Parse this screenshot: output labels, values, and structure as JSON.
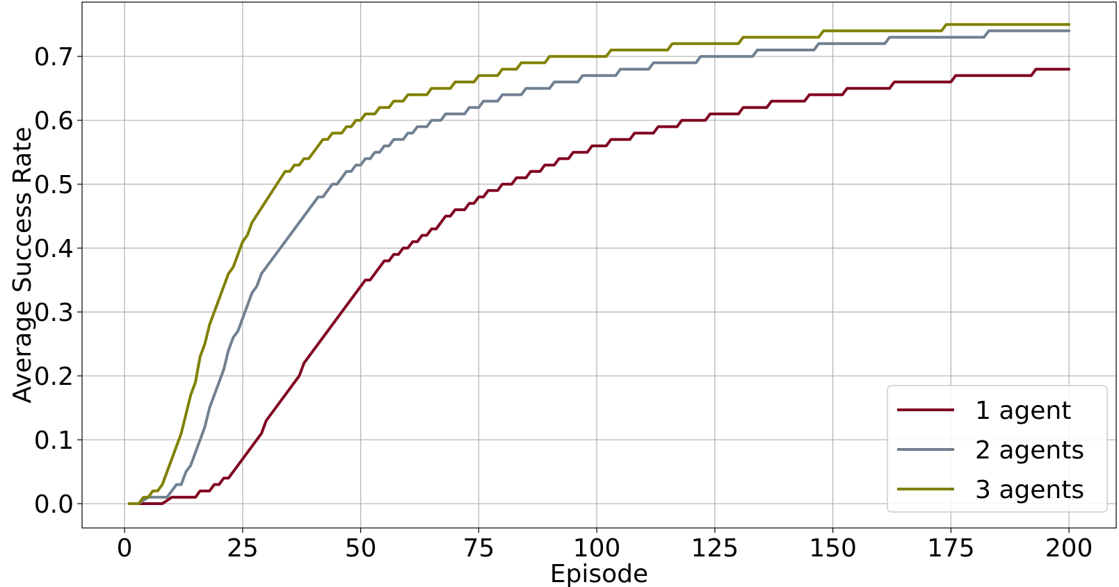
{
  "chart_data": {
    "type": "line",
    "title": "",
    "xlabel": "Episode",
    "ylabel": "Average Success Rate",
    "xlim": [
      -9,
      210
    ],
    "ylim": [
      -0.038,
      0.785
    ],
    "grid": true,
    "legend_position": "bottom-right",
    "x_ticks": [
      0,
      25,
      50,
      75,
      100,
      125,
      150,
      175,
      200
    ],
    "x_tick_labels": [
      "0",
      "25",
      "50",
      "75",
      "100",
      "125",
      "150",
      "175",
      "200"
    ],
    "y_ticks": [
      0.0,
      0.1,
      0.2,
      0.3,
      0.4,
      0.5,
      0.6,
      0.7
    ],
    "y_tick_labels": [
      "0.0",
      "0.1",
      "0.2",
      "0.3",
      "0.4",
      "0.5",
      "0.6",
      "0.7"
    ],
    "series": [
      {
        "name": "1 agent",
        "color": "#800020",
        "points": [
          [
            1,
            0
          ],
          [
            8,
            0
          ],
          [
            10,
            0.01
          ],
          [
            15,
            0.01
          ],
          [
            16,
            0.02
          ],
          [
            18,
            0.02
          ],
          [
            19,
            0.03
          ],
          [
            20,
            0.03
          ],
          [
            21,
            0.04
          ],
          [
            22,
            0.04
          ],
          [
            25,
            0.07
          ],
          [
            29,
            0.11
          ],
          [
            30,
            0.13
          ],
          [
            37,
            0.2
          ],
          [
            38,
            0.22
          ],
          [
            50,
            0.34
          ],
          [
            51,
            0.35
          ],
          [
            52,
            0.35
          ],
          [
            55,
            0.38
          ],
          [
            56,
            0.38
          ],
          [
            57,
            0.39
          ],
          [
            58,
            0.39
          ],
          [
            59,
            0.4
          ],
          [
            60,
            0.4
          ],
          [
            61,
            0.41
          ],
          [
            62,
            0.41
          ],
          [
            63,
            0.42
          ],
          [
            64,
            0.42
          ],
          [
            65,
            0.43
          ],
          [
            66,
            0.43
          ],
          [
            68,
            0.45
          ],
          [
            69,
            0.45
          ],
          [
            70,
            0.46
          ],
          [
            72,
            0.46
          ],
          [
            73,
            0.47
          ],
          [
            74,
            0.47
          ],
          [
            75,
            0.48
          ],
          [
            76,
            0.48
          ],
          [
            77,
            0.49
          ],
          [
            79,
            0.49
          ],
          [
            80,
            0.5
          ],
          [
            82,
            0.5
          ],
          [
            83,
            0.51
          ],
          [
            85,
            0.51
          ],
          [
            86,
            0.52
          ],
          [
            88,
            0.52
          ],
          [
            89,
            0.53
          ],
          [
            91,
            0.53
          ],
          [
            92,
            0.54
          ],
          [
            94,
            0.54
          ],
          [
            95,
            0.55
          ],
          [
            98,
            0.55
          ],
          [
            99,
            0.56
          ],
          [
            102,
            0.56
          ],
          [
            103,
            0.57
          ],
          [
            107,
            0.57
          ],
          [
            108,
            0.58
          ],
          [
            112,
            0.58
          ],
          [
            113,
            0.59
          ],
          [
            117,
            0.59
          ],
          [
            118,
            0.6
          ],
          [
            123,
            0.6
          ],
          [
            124,
            0.61
          ],
          [
            130,
            0.61
          ],
          [
            131,
            0.62
          ],
          [
            136,
            0.62
          ],
          [
            137,
            0.63
          ],
          [
            144,
            0.63
          ],
          [
            145,
            0.64
          ],
          [
            152,
            0.64
          ],
          [
            153,
            0.65
          ],
          [
            162,
            0.65
          ],
          [
            163,
            0.66
          ],
          [
            175,
            0.66
          ],
          [
            176,
            0.67
          ],
          [
            192,
            0.67
          ],
          [
            193,
            0.68
          ],
          [
            200,
            0.68
          ]
        ]
      },
      {
        "name": "2 agents",
        "color": "#708090",
        "points": [
          [
            1,
            0
          ],
          [
            3,
            0
          ],
          [
            5,
            0.01
          ],
          [
            9,
            0.01
          ],
          [
            11,
            0.03
          ],
          [
            12,
            0.03
          ],
          [
            13,
            0.05
          ],
          [
            14,
            0.06
          ],
          [
            17,
            0.12
          ],
          [
            18,
            0.15
          ],
          [
            21,
            0.21
          ],
          [
            22,
            0.24
          ],
          [
            23,
            0.26
          ],
          [
            24,
            0.27
          ],
          [
            27,
            0.33
          ],
          [
            28,
            0.34
          ],
          [
            29,
            0.36
          ],
          [
            41,
            0.48
          ],
          [
            42,
            0.48
          ],
          [
            44,
            0.5
          ],
          [
            45,
            0.5
          ],
          [
            47,
            0.52
          ],
          [
            48,
            0.52
          ],
          [
            49,
            0.53
          ],
          [
            50,
            0.53
          ],
          [
            51,
            0.54
          ],
          [
            52,
            0.54
          ],
          [
            53,
            0.55
          ],
          [
            54,
            0.55
          ],
          [
            55,
            0.56
          ],
          [
            56,
            0.56
          ],
          [
            57,
            0.57
          ],
          [
            59,
            0.57
          ],
          [
            60,
            0.58
          ],
          [
            61,
            0.58
          ],
          [
            62,
            0.59
          ],
          [
            64,
            0.59
          ],
          [
            65,
            0.6
          ],
          [
            67,
            0.6
          ],
          [
            68,
            0.61
          ],
          [
            72,
            0.61
          ],
          [
            73,
            0.62
          ],
          [
            75,
            0.62
          ],
          [
            76,
            0.63
          ],
          [
            79,
            0.63
          ],
          [
            80,
            0.64
          ],
          [
            84,
            0.64
          ],
          [
            85,
            0.65
          ],
          [
            90,
            0.65
          ],
          [
            91,
            0.66
          ],
          [
            96,
            0.66
          ],
          [
            97,
            0.67
          ],
          [
            104,
            0.67
          ],
          [
            105,
            0.68
          ],
          [
            111,
            0.68
          ],
          [
            112,
            0.69
          ],
          [
            121,
            0.69
          ],
          [
            122,
            0.7
          ],
          [
            133,
            0.7
          ],
          [
            134,
            0.71
          ],
          [
            146,
            0.71
          ],
          [
            147,
            0.72
          ],
          [
            161,
            0.72
          ],
          [
            162,
            0.73
          ],
          [
            182,
            0.73
          ],
          [
            183,
            0.74
          ],
          [
            200,
            0.74
          ]
        ]
      },
      {
        "name": "3 agents",
        "color": "#808000",
        "points": [
          [
            1,
            0
          ],
          [
            3,
            0
          ],
          [
            4,
            0.01
          ],
          [
            5,
            0.01
          ],
          [
            6,
            0.02
          ],
          [
            7,
            0.02
          ],
          [
            8,
            0.03
          ],
          [
            12,
            0.11
          ],
          [
            14,
            0.17
          ],
          [
            15,
            0.19
          ],
          [
            16,
            0.23
          ],
          [
            17,
            0.25
          ],
          [
            18,
            0.28
          ],
          [
            21,
            0.34
          ],
          [
            22,
            0.36
          ],
          [
            23,
            0.37
          ],
          [
            25,
            0.41
          ],
          [
            26,
            0.42
          ],
          [
            27,
            0.44
          ],
          [
            34,
            0.52
          ],
          [
            35,
            0.52
          ],
          [
            36,
            0.53
          ],
          [
            37,
            0.53
          ],
          [
            38,
            0.54
          ],
          [
            39,
            0.54
          ],
          [
            42,
            0.57
          ],
          [
            43,
            0.57
          ],
          [
            44,
            0.58
          ],
          [
            46,
            0.58
          ],
          [
            47,
            0.59
          ],
          [
            48,
            0.59
          ],
          [
            49,
            0.6
          ],
          [
            50,
            0.6
          ],
          [
            51,
            0.61
          ],
          [
            53,
            0.61
          ],
          [
            54,
            0.62
          ],
          [
            56,
            0.62
          ],
          [
            57,
            0.63
          ],
          [
            59,
            0.63
          ],
          [
            60,
            0.64
          ],
          [
            64,
            0.64
          ],
          [
            65,
            0.65
          ],
          [
            69,
            0.65
          ],
          [
            70,
            0.66
          ],
          [
            74,
            0.66
          ],
          [
            75,
            0.67
          ],
          [
            79,
            0.67
          ],
          [
            80,
            0.68
          ],
          [
            83,
            0.68
          ],
          [
            84,
            0.69
          ],
          [
            89,
            0.69
          ],
          [
            90,
            0.7
          ],
          [
            102,
            0.7
          ],
          [
            103,
            0.71
          ],
          [
            115,
            0.71
          ],
          [
            116,
            0.72
          ],
          [
            130,
            0.72
          ],
          [
            131,
            0.73
          ],
          [
            147,
            0.73
          ],
          [
            148,
            0.74
          ],
          [
            173,
            0.74
          ],
          [
            174,
            0.75
          ],
          [
            200,
            0.75
          ]
        ]
      }
    ]
  }
}
